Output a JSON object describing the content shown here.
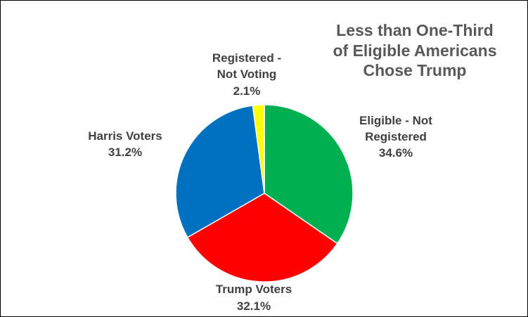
{
  "chart_data": {
    "type": "pie",
    "title_lines": [
      "Less than One-Third",
      "of Eligible Americans",
      "Chose Trump"
    ],
    "start_angle_deg": 0,
    "slices": [
      {
        "name_lines": [
          "Eligible  - Not",
          "Registered"
        ],
        "value": 34.6,
        "label": "34.6%",
        "color": "#00B050"
      },
      {
        "name_lines": [
          "Trump Voters"
        ],
        "value": 32.1,
        "label": "32.1%",
        "color": "#FF0000"
      },
      {
        "name_lines": [
          "Harris Voters"
        ],
        "value": 31.2,
        "label": "31.2%",
        "color": "#0070C0"
      },
      {
        "name_lines": [
          "Registered -",
          "Not Voting"
        ],
        "value": 2.1,
        "label": "2.1%",
        "color": "#FFFF00"
      }
    ]
  }
}
